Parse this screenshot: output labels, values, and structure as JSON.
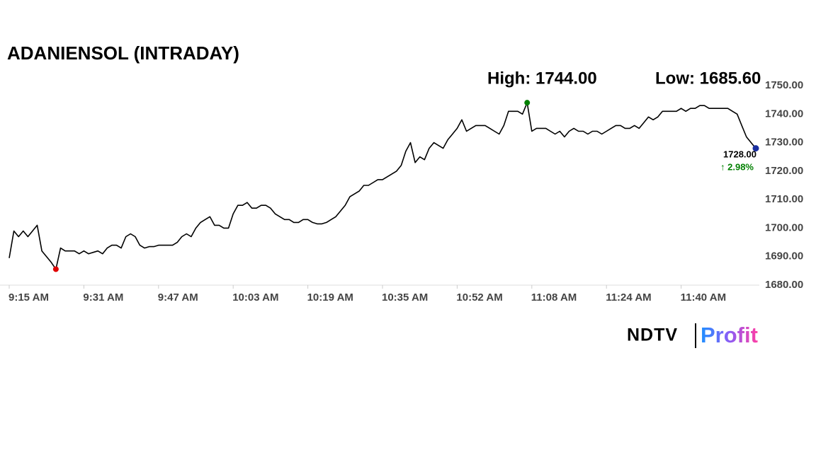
{
  "chart_data": {
    "type": "line",
    "title": "ADANIENSOL (INTRADAY)",
    "high_text": "High: 1744.00",
    "low_text": "Low: 1685.60",
    "last_label": "1728.00",
    "change_label": "↑ 2.98%",
    "logo": [
      "NDTV",
      "Profit"
    ],
    "color": "#000000",
    "high_color": "#008000",
    "low_color": "#e00000",
    "last_color": "#1a2fa0",
    "change_color": "#008000",
    "high_index": 111,
    "low_index": 10,
    "categories": [
      "9:15 AM",
      null,
      null,
      null,
      null,
      null,
      null,
      null,
      null,
      null,
      null,
      null,
      null,
      null,
      null,
      null,
      "9:31 AM",
      null,
      null,
      null,
      null,
      null,
      null,
      null,
      null,
      null,
      null,
      null,
      null,
      null,
      null,
      null,
      "9:47 AM",
      null,
      null,
      null,
      null,
      null,
      null,
      null,
      null,
      null,
      null,
      null,
      null,
      null,
      null,
      null,
      "10:03 AM",
      null,
      null,
      null,
      null,
      null,
      null,
      null,
      null,
      null,
      null,
      null,
      null,
      null,
      null,
      null,
      "10:19 AM",
      null,
      null,
      null,
      null,
      null,
      null,
      null,
      null,
      null,
      null,
      null,
      null,
      null,
      null,
      null,
      "10:35 AM",
      null,
      null,
      null,
      null,
      null,
      null,
      null,
      null,
      null,
      null,
      null,
      null,
      null,
      null,
      null,
      "10:52 AM",
      null,
      null,
      null,
      null,
      null,
      null,
      null,
      null,
      null,
      null,
      null,
      null,
      null,
      null,
      null,
      "11:08 AM",
      null,
      null,
      null,
      null,
      null,
      null,
      null,
      null,
      null,
      null,
      null,
      null,
      null,
      null,
      null,
      "11:24 AM",
      null,
      null,
      null,
      null,
      null,
      null,
      null,
      null,
      null,
      null,
      null,
      null,
      null,
      null,
      null,
      "11:40 AM",
      null,
      null,
      null,
      null,
      null,
      null,
      null,
      null,
      null,
      null,
      null,
      null,
      null,
      null,
      null,
      null
    ],
    "values": [
      1689.5,
      1699,
      1697,
      1699,
      1697,
      1699,
      1701,
      1692,
      1690,
      1688,
      1685.6,
      1693,
      1692,
      1692,
      1692,
      1691,
      1692,
      1691,
      1691.5,
      1692,
      1691,
      1693,
      1694,
      1694,
      1693,
      1697,
      1698,
      1697,
      1694,
      1693,
      1693.5,
      1693.5,
      1694,
      1694,
      1694,
      1694,
      1695,
      1697,
      1698,
      1697,
      1700,
      1702,
      1703,
      1704,
      1701,
      1701,
      1700,
      1700,
      1705,
      1708,
      1708,
      1709,
      1707,
      1707,
      1708,
      1708,
      1707,
      1705,
      1704,
      1703,
      1703,
      1702,
      1702,
      1703,
      1703,
      1702,
      1701.5,
      1701.5,
      1702,
      1703,
      1704,
      1706,
      1708,
      1711,
      1712,
      1713,
      1715,
      1715,
      1716,
      1717,
      1717,
      1718,
      1719,
      1720,
      1722,
      1727,
      1730,
      1723,
      1725,
      1724,
      1728,
      1730,
      1729,
      1728,
      1731,
      1733,
      1735,
      1738,
      1734,
      1735,
      1736,
      1736,
      1736,
      1735,
      1734,
      1733,
      1736,
      1741,
      1741,
      1741,
      1740,
      1744,
      1734,
      1735,
      1735,
      1735,
      1734,
      1733,
      1734,
      1732,
      1734,
      1735,
      1734,
      1734,
      1733,
      1734,
      1734,
      1733,
      1734,
      1735,
      1736,
      1736,
      1735,
      1735,
      1736,
      1735,
      1737,
      1739,
      1738,
      1739,
      1741,
      1741,
      1741,
      1741,
      1742,
      1741,
      1742,
      1742,
      1743,
      1743,
      1742,
      1742,
      1742,
      1742,
      1742,
      1741,
      1740,
      1736,
      1732,
      1730,
      1728
    ],
    "ylim": [
      1680,
      1750
    ],
    "yticks": [
      {
        "value": 1680,
        "label": "1680.00"
      },
      {
        "value": 1690,
        "label": "1690.00"
      },
      {
        "value": 1700,
        "label": "1700.00"
      },
      {
        "value": 1710,
        "label": "1710.00"
      },
      {
        "value": 1720,
        "label": "1720.00"
      },
      {
        "value": 1730,
        "label": "1730.00"
      },
      {
        "value": 1740,
        "label": "1740.00"
      },
      {
        "value": 1750,
        "label": "1750.00"
      }
    ],
    "grid": false
  }
}
